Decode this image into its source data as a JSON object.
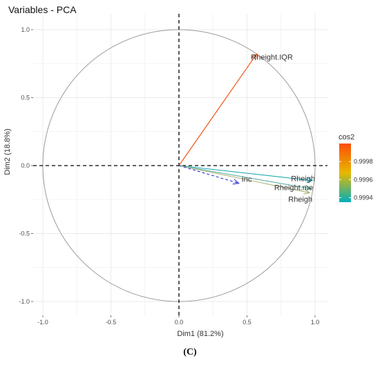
{
  "figure": {
    "title": "Variables - PCA",
    "caption": "(C)"
  },
  "chart_data": {
    "type": "scatter",
    "subtype": "pca-correlation-circle",
    "title": "Variables - PCA",
    "xlabel": "Dim1 (81.2%)",
    "ylabel": "Dim2 (18.8%)",
    "xlim": [
      -1.0,
      1.0
    ],
    "ylim": [
      -1.0,
      1.0
    ],
    "xticks": [
      "-1.0",
      "-0.5",
      "0.0",
      "0.5",
      "1.0"
    ],
    "yticks": [
      "-1.0",
      "-0.5",
      "0.0",
      "0.5",
      "1.0"
    ],
    "grid": true,
    "unit_circle": true,
    "reference_lines": [
      "x=0",
      "y=0"
    ],
    "vectors": [
      {
        "label": "Rheight.IQR",
        "x": 0.57,
        "y": 0.82,
        "cos2": 1.0,
        "color": "#F04B0A",
        "style": "solid",
        "label_anchor": "start",
        "label_dx": -8,
        "label_dy": 8
      },
      {
        "label": "Rheigh",
        "x": 0.98,
        "y": -0.11,
        "cos2": 0.9994,
        "color": "#1FA9B3",
        "style": "solid",
        "label_anchor": "end",
        "label_dx": 4,
        "label_dy": 1
      },
      {
        "label": "Rheight.me",
        "x": 0.97,
        "y": -0.17,
        "cos2": 0.99945,
        "color": "#5EAFA2",
        "style": "solid",
        "label_anchor": "end",
        "label_dx": 3,
        "label_dy": 2
      },
      {
        "label": "Rheigh",
        "x": 0.96,
        "y": -0.2,
        "cos2": 0.9996,
        "color": "#A8B478",
        "style": "solid",
        "label_anchor": "end",
        "label_dx": 4,
        "label_dy": 13
      },
      {
        "label": "Inc",
        "x": 0.44,
        "y": -0.13,
        "cos2": null,
        "color": "#2F31D0",
        "style": "dashed",
        "label_anchor": "start",
        "label_dx": 4,
        "label_dy": -2
      }
    ],
    "legend": {
      "title": "cos2",
      "placement": "right",
      "ticks": [
        "0.9998",
        "0.9996",
        "0.9994"
      ],
      "tick_values": [
        0.9998,
        0.9996,
        0.9994
      ],
      "min": 0.99935,
      "max": 1.0,
      "gradient": [
        "#00AFBB",
        "#E7B800",
        "#FC4E07"
      ]
    }
  }
}
